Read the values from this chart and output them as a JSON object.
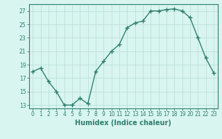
{
  "x": [
    0,
    1,
    2,
    3,
    4,
    5,
    6,
    7,
    8,
    9,
    10,
    11,
    12,
    13,
    14,
    15,
    16,
    17,
    18,
    19,
    20,
    21,
    22,
    23
  ],
  "y": [
    18.0,
    18.5,
    16.5,
    15.0,
    13.0,
    13.0,
    14.0,
    13.2,
    18.0,
    19.5,
    21.0,
    22.0,
    24.5,
    25.2,
    25.5,
    27.0,
    27.0,
    27.2,
    27.3,
    27.0,
    26.0,
    23.0,
    20.0,
    17.8
  ],
  "line_color": "#2e7d6e",
  "marker": "+",
  "markersize": 4,
  "linewidth": 1.0,
  "background_color": "#d8f5ef",
  "grid_color": "#b8ddd6",
  "xlabel": "Humidex (Indice chaleur)",
  "xlim": [
    -0.5,
    23.5
  ],
  "ylim": [
    12.5,
    28
  ],
  "yticks": [
    13,
    15,
    17,
    19,
    21,
    23,
    25,
    27
  ],
  "xtick_labels": [
    "0",
    "1",
    "2",
    "3",
    "4",
    "5",
    "6",
    "7",
    "8",
    "9",
    "10",
    "11",
    "12",
    "13",
    "14",
    "15",
    "16",
    "17",
    "18",
    "19",
    "20",
    "21",
    "22",
    "23"
  ],
  "tick_fontsize": 5.5,
  "xlabel_fontsize": 7,
  "tick_color": "#2e7d6e",
  "label_color": "#2e7d6e",
  "spine_color": "#2e7d6e"
}
